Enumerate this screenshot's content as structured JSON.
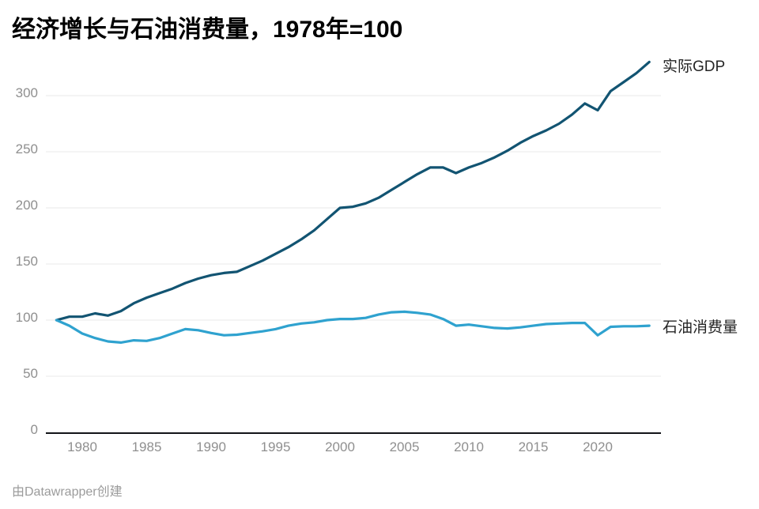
{
  "header": {
    "title": "经济增长与石油消费量，1978年=100"
  },
  "footer": {
    "credit": "由Datawrapper创建"
  },
  "colors": {
    "gdp_line": "#125472",
    "oil_line": "#2fa2cf",
    "grid": "#e9e9e9",
    "axis": "#121418",
    "tick_text": "#8f8f8f",
    "title_text": "#000000",
    "series_label_text": "#252525",
    "background": "#ffffff"
  },
  "chart_data": {
    "type": "line",
    "title": "经济增长与石油消费量，1978年=100",
    "xlabel": "",
    "ylabel": "",
    "xlim": [
      1978,
      2024
    ],
    "ylim": [
      0,
      330
    ],
    "grid": "horizontal",
    "legend_position": "labels-at-line-ends",
    "x_ticks": [
      1980,
      1985,
      1990,
      1995,
      2000,
      2005,
      2010,
      2015,
      2020
    ],
    "y_ticks": [
      0,
      50,
      100,
      150,
      200,
      250,
      300
    ],
    "x": [
      1978,
      1979,
      1980,
      1981,
      1982,
      1983,
      1984,
      1985,
      1986,
      1987,
      1988,
      1989,
      1990,
      1991,
      1992,
      1993,
      1994,
      1995,
      1996,
      1997,
      1998,
      1999,
      2000,
      2001,
      2002,
      2003,
      2004,
      2005,
      2006,
      2007,
      2008,
      2009,
      2010,
      2011,
      2012,
      2013,
      2014,
      2015,
      2016,
      2017,
      2018,
      2019,
      2020,
      2021,
      2022,
      2023,
      2024
    ],
    "series": [
      {
        "name": "实际GDP",
        "color": "#125472",
        "values": [
          100,
          103,
          103,
          106,
          104,
          108,
          115,
          120,
          124,
          128,
          133,
          137,
          140,
          142,
          143,
          148,
          153,
          159,
          165,
          172,
          180,
          190,
          200,
          201,
          204,
          209,
          216,
          223,
          230,
          236,
          236,
          231,
          236,
          240,
          245,
          251,
          258,
          264,
          269,
          275,
          283,
          293,
          287,
          304,
          312,
          320,
          330
        ]
      },
      {
        "name": "石油消费量",
        "color": "#2fa2cf",
        "values": [
          100,
          95,
          88,
          84,
          81,
          80,
          82,
          81.5,
          84,
          88,
          92,
          91,
          88.5,
          86.5,
          87,
          88.5,
          90,
          92,
          95,
          97,
          98,
          100,
          101,
          101,
          102,
          105,
          107,
          107.5,
          106.5,
          105,
          101,
          95,
          96,
          94.5,
          93,
          92.5,
          93.5,
          95,
          96.5,
          97,
          97.5,
          97.5,
          86.5,
          94,
          94.5,
          94.5,
          95
        ]
      }
    ]
  }
}
